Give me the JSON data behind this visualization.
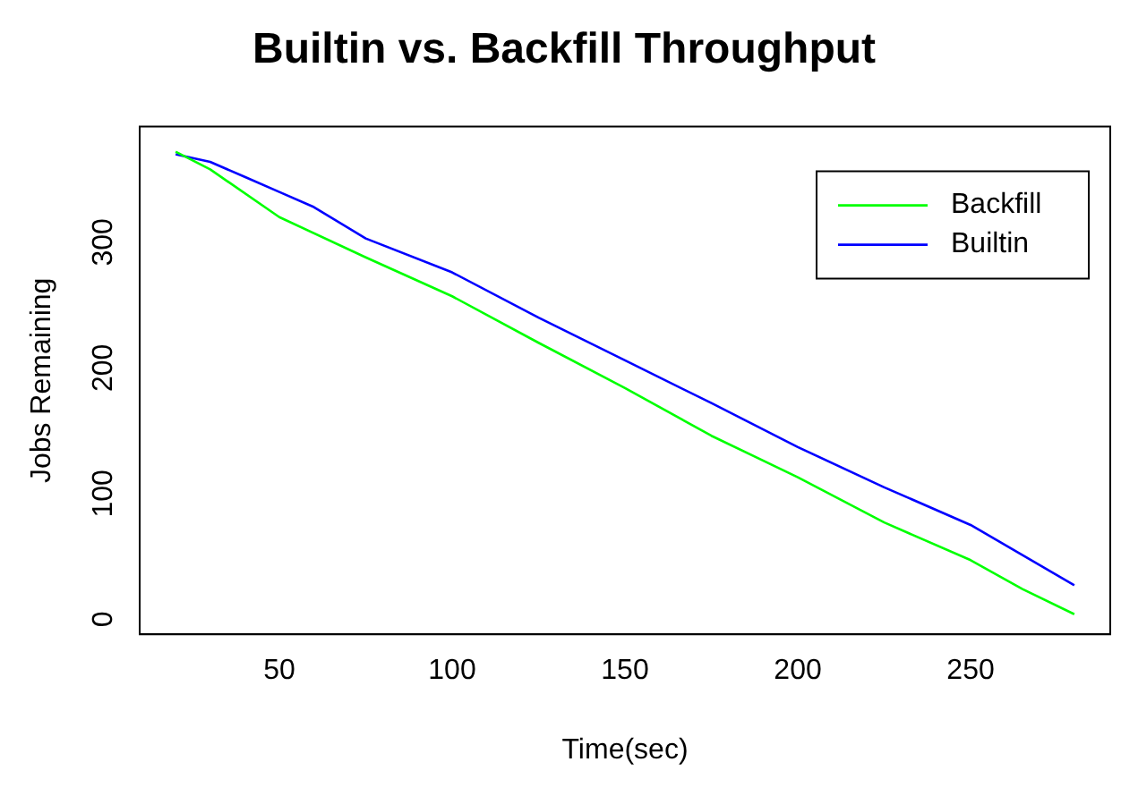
{
  "chart_data": {
    "type": "line",
    "title": "Builtin vs. Backfill Throughput",
    "xlabel": "Time(sec)",
    "ylabel": "Jobs Remaining",
    "xlim": [
      9.6,
      290.4
    ],
    "xticks": [
      50,
      100,
      150,
      200,
      250
    ],
    "ylim": [
      -12,
      392
    ],
    "yticks": [
      0,
      100,
      200,
      300
    ],
    "grid": false,
    "legend": "top right",
    "marker": "none",
    "line_style": "solid",
    "series": [
      {
        "name": "Backfill",
        "color": "#00ff00",
        "x": [
          20,
          30,
          50,
          75,
          100,
          125,
          150,
          175,
          200,
          225,
          250,
          265,
          280
        ],
        "values": [
          372,
          358,
          320,
          288,
          257,
          220,
          184,
          146,
          113,
          77,
          47,
          24,
          4
        ]
      },
      {
        "name": "Builtin",
        "color": "#0000ff",
        "x": [
          20,
          30,
          40,
          50,
          60,
          75,
          100,
          125,
          150,
          175,
          200,
          225,
          250,
          265,
          280
        ],
        "values": [
          370,
          364,
          352,
          340,
          328,
          303,
          276,
          240,
          206,
          172,
          137,
          105,
          75,
          51,
          27
        ]
      }
    ]
  }
}
